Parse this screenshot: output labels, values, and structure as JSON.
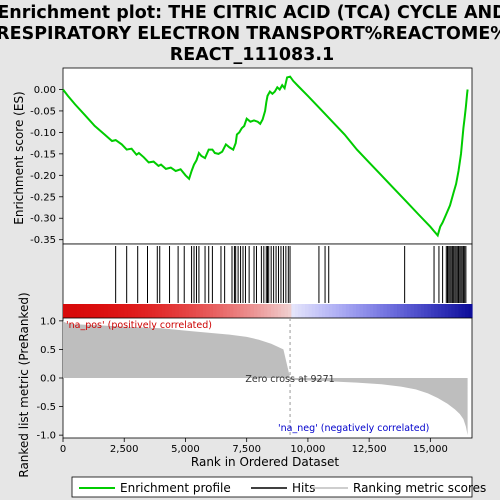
{
  "title_lines": [
    "Enrichment plot: THE CITRIC ACID (TCA) CYCLE AND",
    "RESPIRATORY ELECTRON TRANSPORT%REACTOME%",
    "REACT_111083.1"
  ],
  "colors": {
    "enrichment_line": "#00cc00",
    "hits": "#000000",
    "metric_fill": "#bebebe",
    "pos_label": "#cc0000",
    "neg_label": "#0000cc",
    "zero_line": "#999999"
  },
  "chart_data": [
    {
      "type": "line",
      "name": "enrichment-profile",
      "ylabel": "Enrichment score (ES)",
      "xlim": [
        0,
        16700
      ],
      "ylim": [
        -0.36,
        0.05
      ],
      "yticks": [
        "0.00",
        "-0.05",
        "-0.10",
        "-0.15",
        "-0.20",
        "-0.25",
        "-0.30",
        "-0.35"
      ],
      "ytick_values": [
        0,
        -0.05,
        -0.1,
        -0.15,
        -0.2,
        -0.25,
        -0.3,
        -0.35
      ],
      "grid": false,
      "points": [
        [
          0,
          0.0
        ],
        [
          200,
          -0.015
        ],
        [
          500,
          -0.035
        ],
        [
          900,
          -0.06
        ],
        [
          1300,
          -0.085
        ],
        [
          1700,
          -0.105
        ],
        [
          2000,
          -0.12
        ],
        [
          2150,
          -0.118
        ],
        [
          2400,
          -0.128
        ],
        [
          2600,
          -0.14
        ],
        [
          2800,
          -0.138
        ],
        [
          3000,
          -0.152
        ],
        [
          3100,
          -0.148
        ],
        [
          3300,
          -0.158
        ],
        [
          3500,
          -0.17
        ],
        [
          3700,
          -0.168
        ],
        [
          3900,
          -0.178
        ],
        [
          4000,
          -0.175
        ],
        [
          4200,
          -0.185
        ],
        [
          4400,
          -0.182
        ],
        [
          4600,
          -0.19
        ],
        [
          4800,
          -0.186
        ],
        [
          5000,
          -0.2
        ],
        [
          5150,
          -0.208
        ],
        [
          5250,
          -0.19
        ],
        [
          5350,
          -0.175
        ],
        [
          5450,
          -0.165
        ],
        [
          5550,
          -0.148
        ],
        [
          5650,
          -0.155
        ],
        [
          5800,
          -0.16
        ],
        [
          5950,
          -0.14
        ],
        [
          6100,
          -0.14
        ],
        [
          6200,
          -0.148
        ],
        [
          6350,
          -0.15
        ],
        [
          6500,
          -0.145
        ],
        [
          6650,
          -0.128
        ],
        [
          6800,
          -0.135
        ],
        [
          6950,
          -0.14
        ],
        [
          7050,
          -0.125
        ],
        [
          7100,
          -0.105
        ],
        [
          7200,
          -0.1
        ],
        [
          7300,
          -0.09
        ],
        [
          7400,
          -0.085
        ],
        [
          7500,
          -0.068
        ],
        [
          7650,
          -0.075
        ],
        [
          7800,
          -0.072
        ],
        [
          7950,
          -0.075
        ],
        [
          8050,
          -0.08
        ],
        [
          8150,
          -0.07
        ],
        [
          8250,
          -0.05
        ],
        [
          8300,
          -0.03
        ],
        [
          8350,
          -0.015
        ],
        [
          8450,
          -0.005
        ],
        [
          8550,
          -0.01
        ],
        [
          8650,
          -0.005
        ],
        [
          8750,
          0.005
        ],
        [
          8850,
          0.0
        ],
        [
          8950,
          0.01
        ],
        [
          9050,
          0.003
        ],
        [
          9150,
          0.028
        ],
        [
          9271,
          0.03
        ],
        [
          9400,
          0.02
        ],
        [
          9600,
          0.008
        ],
        [
          10000,
          -0.015
        ],
        [
          10500,
          -0.045
        ],
        [
          11000,
          -0.075
        ],
        [
          11500,
          -0.105
        ],
        [
          12000,
          -0.14
        ],
        [
          12500,
          -0.17
        ],
        [
          13000,
          -0.2
        ],
        [
          13500,
          -0.23
        ],
        [
          14000,
          -0.26
        ],
        [
          14500,
          -0.29
        ],
        [
          15000,
          -0.32
        ],
        [
          15150,
          -0.33
        ],
        [
          15300,
          -0.34
        ],
        [
          15400,
          -0.32
        ],
        [
          15500,
          -0.31
        ],
        [
          15650,
          -0.29
        ],
        [
          15800,
          -0.27
        ],
        [
          15950,
          -0.24
        ],
        [
          16050,
          -0.22
        ],
        [
          16150,
          -0.19
        ],
        [
          16250,
          -0.15
        ],
        [
          16300,
          -0.12
        ],
        [
          16350,
          -0.09
        ],
        [
          16400,
          -0.065
        ],
        [
          16450,
          -0.04
        ],
        [
          16500,
          -0.01
        ],
        [
          16520,
          0.0
        ]
      ]
    },
    {
      "type": "scatter",
      "name": "hits",
      "ylabel": "",
      "xlim": [
        0,
        16700
      ],
      "positions": [
        2150,
        2600,
        3050,
        3450,
        3850,
        3950,
        4350,
        4700,
        4950,
        5250,
        5350,
        5450,
        5550,
        5800,
        5950,
        6100,
        6450,
        6600,
        6900,
        7000,
        7050,
        7150,
        7250,
        7350,
        7450,
        7600,
        7800,
        7900,
        8100,
        8200,
        8300,
        8350,
        8400,
        8500,
        8600,
        8700,
        8800,
        8900,
        9000,
        9100,
        9200,
        9270,
        10450,
        10700,
        10850,
        13950,
        15150,
        15350,
        15500,
        15650,
        15700,
        15750,
        15800,
        15850,
        15900,
        15950,
        16000,
        16050,
        16100,
        16150,
        16200,
        16250,
        16300,
        16350,
        16400,
        16450
      ]
    },
    {
      "type": "area",
      "name": "ranked-list-metric",
      "xlabel": "Rank in Ordered Dataset",
      "ylabel": "Ranked list metric (PreRanked)",
      "xlim": [
        0,
        16700
      ],
      "ylim": [
        -1.05,
        1.05
      ],
      "xticks": [
        "0",
        "2,500",
        "5,000",
        "7,500",
        "10,000",
        "12,500",
        "15,000"
      ],
      "xtick_values": [
        0,
        2500,
        5000,
        7500,
        10000,
        12500,
        15000
      ],
      "yticks": [
        "1.0",
        "0.5",
        "0.0",
        "-0.5",
        "-1.0"
      ],
      "ytick_values": [
        1.0,
        0.5,
        0.0,
        -0.5,
        -1.0
      ],
      "points": [
        [
          0,
          1.0
        ],
        [
          50,
          0.98
        ],
        [
          150,
          0.96
        ],
        [
          500,
          0.94
        ],
        [
          1500,
          0.92
        ],
        [
          2500,
          0.9
        ],
        [
          4000,
          0.87
        ],
        [
          5000,
          0.83
        ],
        [
          6000,
          0.79
        ],
        [
          6800,
          0.76
        ],
        [
          7500,
          0.72
        ],
        [
          8000,
          0.67
        ],
        [
          8500,
          0.6
        ],
        [
          9000,
          0.5
        ],
        [
          9271,
          0.0
        ],
        [
          9300,
          -0.03
        ],
        [
          10500,
          -0.05
        ],
        [
          12000,
          -0.08
        ],
        [
          13000,
          -0.11
        ],
        [
          13800,
          -0.15
        ],
        [
          14400,
          -0.2
        ],
        [
          14900,
          -0.27
        ],
        [
          15300,
          -0.35
        ],
        [
          15700,
          -0.45
        ],
        [
          16000,
          -0.55
        ],
        [
          16200,
          -0.63
        ],
        [
          16350,
          -0.72
        ],
        [
          16450,
          -0.85
        ],
        [
          16520,
          -1.0
        ]
      ],
      "zero_cross": 9271,
      "zero_cross_label": "Zero cross at 9271",
      "pos_label": "'na_pos' (positively correlated)",
      "neg_label": "'na_neg' (negatively correlated)"
    }
  ],
  "legend": {
    "items": [
      {
        "label": "Enrichment profile",
        "color": "#00cc00"
      },
      {
        "label": "Hits",
        "color": "#000000"
      },
      {
        "label": "Ranking metric scores",
        "color": "#bebebe"
      }
    ]
  }
}
